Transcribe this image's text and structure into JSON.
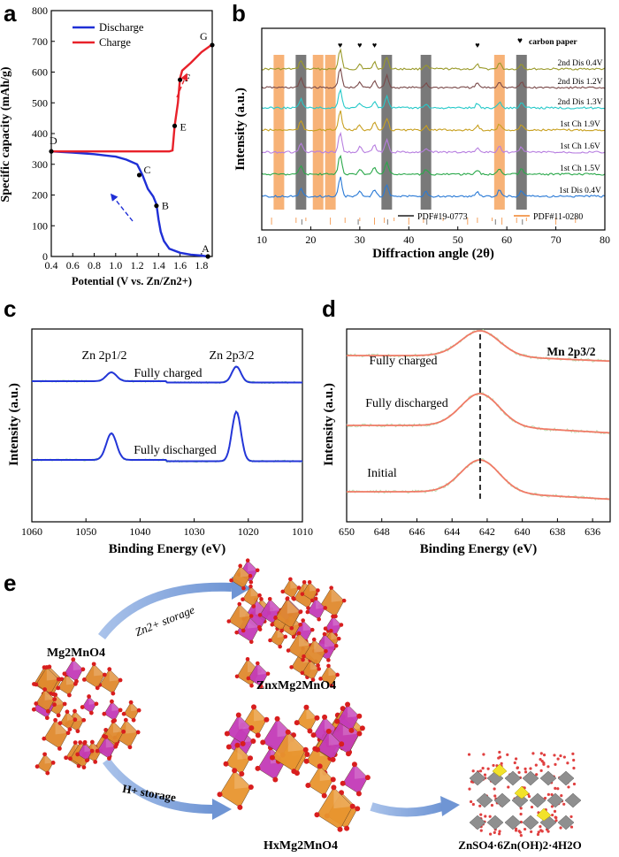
{
  "panels": {
    "a": "a",
    "b": "b",
    "c": "c",
    "d": "d",
    "e": "e"
  },
  "chart_data": [
    {
      "id": "a",
      "type": "line",
      "xlabel": "Potential (V vs. Zn/Zn2+)",
      "ylabel": "Specific capacity (mAh/g)",
      "xlim": [
        0.4,
        1.9
      ],
      "ylim": [
        0,
        800
      ],
      "xticks": [
        "0.4",
        "0.6",
        "0.8",
        "1.0",
        "1.2",
        "1.4",
        "1.6",
        "1.8"
      ],
      "yticks": [
        "0",
        "100",
        "200",
        "300",
        "400",
        "500",
        "600",
        "700",
        "800"
      ],
      "legend": [
        "Discharge",
        "Charge"
      ],
      "colors": {
        "discharge": "#1f2fd6",
        "charge": "#e8212a"
      },
      "series": [
        {
          "name": "Discharge",
          "x": [
            0.4,
            0.6,
            0.8,
            1.0,
            1.1,
            1.2,
            1.25,
            1.3,
            1.35,
            1.38,
            1.4,
            1.42,
            1.45,
            1.5,
            1.6,
            1.7,
            1.8,
            1.86
          ],
          "y": [
            342,
            338,
            333,
            325,
            315,
            300,
            265,
            220,
            195,
            170,
            120,
            80,
            50,
            25,
            12,
            6,
            3,
            0
          ]
        },
        {
          "name": "Charge",
          "x": [
            0.4,
            1.0,
            1.5,
            1.53,
            1.55,
            1.58,
            1.6,
            1.62,
            1.7,
            1.8,
            1.9
          ],
          "y": [
            342,
            342,
            342,
            345,
            425,
            500,
            580,
            605,
            630,
            665,
            690
          ]
        }
      ],
      "points": [
        {
          "label": "A",
          "x": 1.86,
          "y": 0
        },
        {
          "label": "B",
          "x": 1.38,
          "y": 165
        },
        {
          "label": "C",
          "x": 1.22,
          "y": 265
        },
        {
          "label": "D",
          "x": 0.4,
          "y": 342
        },
        {
          "label": "E",
          "x": 1.55,
          "y": 425
        },
        {
          "label": "F",
          "x": 1.6,
          "y": 575
        },
        {
          "label": "G",
          "x": 1.9,
          "y": 688
        }
      ]
    },
    {
      "id": "b",
      "type": "line",
      "xlabel": "Diffraction angle (2θ)",
      "ylabel": "Intensity (a.u.)",
      "xlim": [
        10,
        80
      ],
      "xticks": [
        "10",
        "20",
        "30",
        "40",
        "50",
        "60",
        "70",
        "80"
      ],
      "legend_marker": "carbon paper",
      "refs": [
        "PDF#19-0773",
        "PDF#11-0280"
      ],
      "traces": [
        {
          "label": "2nd Dis 0.4V",
          "color": "#9a9a2a"
        },
        {
          "label": "2nd Dis 1.2V",
          "color": "#7a4a4a"
        },
        {
          "label": "2nd Dis 1.3V",
          "color": "#26c9c9"
        },
        {
          "label": "1st Ch 1.9V",
          "color": "#c8a020"
        },
        {
          "label": "1st Ch 1.6V",
          "color": "#b77ee0"
        },
        {
          "label": "1st Ch 1.5V",
          "color": "#2aa84a"
        },
        {
          "label": "1st Dis 0.4V",
          "color": "#2a7ad6"
        }
      ],
      "orange_bands": [
        13.5,
        21.5,
        24.0,
        58.5
      ],
      "grey_bands": [
        18.0,
        35.5,
        43.5,
        63.0
      ],
      "carbon_marks": [
        26.0,
        30.0,
        33.0,
        54.0
      ]
    },
    {
      "id": "c",
      "type": "line",
      "xlabel": "Binding Energy (eV)",
      "ylabel": "Intensity (a.u.)",
      "xlim": [
        1060,
        1010
      ],
      "xticks": [
        "1060",
        "1050",
        "1040",
        "1030",
        "1020",
        "1010"
      ],
      "peaks": [
        "Zn 2p1/2",
        "Zn 2p3/2"
      ],
      "traces": [
        "Fully charged",
        "Fully discharged"
      ],
      "peak_positions": [
        1045.3,
        1022.2
      ]
    },
    {
      "id": "d",
      "type": "line",
      "xlabel": "Binding Energy (eV)",
      "ylabel": "Intensity (a.u.)",
      "xlim": [
        650,
        635
      ],
      "xticks": [
        "650",
        "648",
        "646",
        "644",
        "642",
        "640",
        "638",
        "636"
      ],
      "title": "Mn 2p3/2",
      "traces": [
        "Fully charged",
        "Fully discharged",
        "Initial"
      ],
      "peak_position": 642.4
    }
  ],
  "schematic": {
    "start": "Mg2MnO4",
    "zn_path": "Zn2+ storage",
    "zn_product": "ZnxMg2MnO4",
    "h_path": "H+ storage",
    "h_product": "HxMg2MnO4",
    "byproduct": "ZnSO4·6Zn(OH)2·4H2O"
  }
}
